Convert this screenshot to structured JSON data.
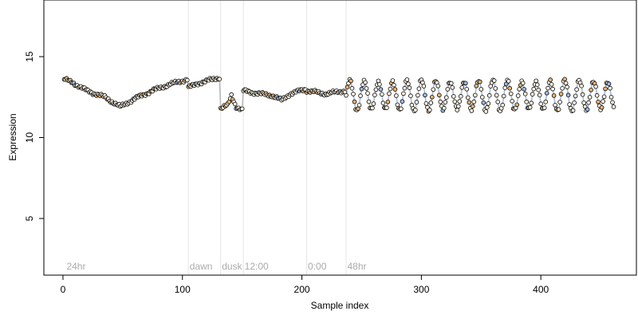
{
  "chart_data": {
    "type": "scatter",
    "xlabel": "Sample index",
    "ylabel": "Expression",
    "xlim": [
      -16,
      480
    ],
    "ylim": [
      1.5,
      18.5
    ],
    "x_ticks": [
      0,
      100,
      200,
      300,
      400
    ],
    "y_ticks": [
      5,
      10,
      15
    ],
    "vlines": [
      105,
      132,
      151,
      204,
      237
    ],
    "annotations": [
      {
        "label": "24hr",
        "x": 3
      },
      {
        "label": "dawn",
        "x": 106
      },
      {
        "label": "dusk",
        "x": 133
      },
      {
        "label": "12:00",
        "x": 152
      },
      {
        "label": "0:00",
        "x": 205
      },
      {
        "label": "48hr",
        "x": 238
      }
    ],
    "segments": [
      {
        "x_start": 1,
        "x_end": 104,
        "trend": [
          [
            1,
            13.6
          ],
          [
            8,
            13.4
          ],
          [
            20,
            12.9
          ],
          [
            35,
            12.5
          ],
          [
            48,
            11.9
          ],
          [
            60,
            12.4
          ],
          [
            75,
            12.9
          ],
          [
            90,
            13.3
          ],
          [
            104,
            13.6
          ]
        ]
      },
      {
        "x_start": 105,
        "x_end": 131,
        "trend": [
          [
            105,
            13.1
          ],
          [
            115,
            13.4
          ],
          [
            131,
            13.7
          ]
        ]
      },
      {
        "x_start": 132,
        "x_end": 150,
        "trend": [
          [
            132,
            11.8
          ],
          [
            138,
            12.0
          ],
          [
            141,
            12.6
          ],
          [
            145,
            11.9
          ],
          [
            150,
            11.7
          ]
        ]
      },
      {
        "x_start": 151,
        "x_end": 203,
        "trend": [
          [
            151,
            12.9
          ],
          [
            165,
            12.7
          ],
          [
            175,
            12.6
          ],
          [
            183,
            12.3
          ],
          [
            190,
            12.7
          ],
          [
            203,
            13.0
          ]
        ]
      },
      {
        "x_start": 204,
        "x_end": 236,
        "trend": [
          [
            204,
            12.9
          ],
          [
            220,
            12.7
          ],
          [
            236,
            12.9
          ]
        ]
      },
      {
        "x_start": 237,
        "x_end": 461,
        "oscillation": {
          "mean": 12.6,
          "amplitude": 0.9,
          "period": 12
        }
      }
    ],
    "series_colors": {
      "line": "#a9b9d6",
      "point_fill_light": "#fff7e6",
      "point_fill_orange": "#e8b474",
      "point_fill_blue": "#9db9e0",
      "vline": "#e4e4e4",
      "annotation": "#aaaaaa"
    }
  }
}
